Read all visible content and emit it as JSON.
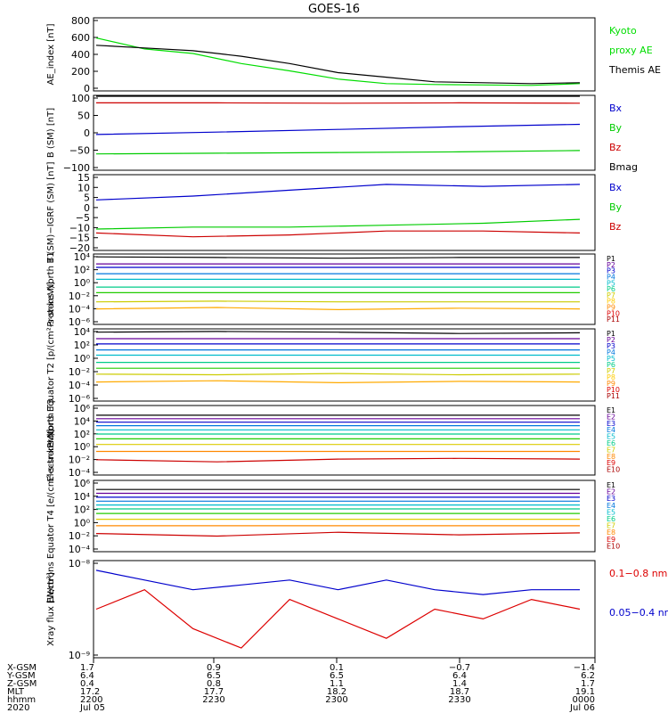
{
  "title": "GOES-16",
  "chart_data": [
    {
      "type": "line",
      "ylabel": "AE_index [nT]",
      "ylim": [
        0,
        800
      ],
      "y_ticks": [
        "800",
        "600",
        "400",
        "200",
        "0"
      ],
      "x": [
        0,
        0.1,
        0.2,
        0.3,
        0.4,
        0.5,
        0.6,
        0.7,
        0.8,
        0.9,
        1.0
      ],
      "series": [
        {
          "name": "Kyoto proxy AE",
          "color": "#00dd00",
          "values": [
            580,
            460,
            410,
            300,
            220,
            130,
            80,
            70,
            65,
            60,
            80
          ]
        },
        {
          "name": "Themis AE",
          "color": "#000000",
          "values": [
            500,
            470,
            440,
            380,
            300,
            200,
            150,
            100,
            90,
            80,
            90
          ]
        }
      ],
      "legend": [
        {
          "text": "Kyoto",
          "color": "#00dd00"
        },
        {
          "text": "proxy AE",
          "color": "#00dd00"
        },
        {
          "text": "Themis AE",
          "color": "#000000"
        }
      ]
    },
    {
      "type": "line",
      "ylabel": "B (SM) [nT]",
      "ylim": [
        -110,
        110
      ],
      "y_ticks": [
        "100",
        "50",
        "0",
        "−50",
        "−100"
      ],
      "x": [
        0,
        0.25,
        0.5,
        0.75,
        1.0
      ],
      "series": [
        {
          "name": "Bx",
          "color": "#0000cc",
          "values": [
            -5,
            2,
            10,
            18,
            25
          ]
        },
        {
          "name": "By",
          "color": "#00cc00",
          "values": [
            -62,
            -60,
            -58,
            -56,
            -52
          ]
        },
        {
          "name": "Bz",
          "color": "#cc0000",
          "values": [
            88,
            88,
            87,
            88,
            87
          ]
        },
        {
          "name": "Bmag",
          "color": "#000000",
          "values": [
            108,
            108,
            108,
            108,
            108
          ]
        }
      ],
      "legend": [
        {
          "text": "Bx",
          "color": "#0000cc"
        },
        {
          "text": "By",
          "color": "#00cc00"
        },
        {
          "text": "Bz",
          "color": "#cc0000"
        },
        {
          "text": "Bmag",
          "color": "#000000"
        }
      ]
    },
    {
      "type": "line",
      "ylabel": "B (SM)−IGRF (SM) [nT]",
      "ylim": [
        -22,
        17
      ],
      "y_ticks": [
        "15",
        "10",
        "5",
        "0",
        "−5",
        "−10",
        "−15",
        "−20"
      ],
      "x": [
        0,
        0.2,
        0.4,
        0.6,
        0.8,
        1.0
      ],
      "series": [
        {
          "name": "Bx",
          "color": "#0000cc",
          "values": [
            4,
            6,
            9,
            12,
            11,
            12
          ]
        },
        {
          "name": "By",
          "color": "#00cc00",
          "values": [
            -11,
            -10,
            -10,
            -9,
            -8,
            -6
          ]
        },
        {
          "name": "Bz",
          "color": "#cc0000",
          "values": [
            -13,
            -15,
            -14,
            -12,
            -12,
            -13
          ]
        }
      ],
      "legend": [
        {
          "text": "Bx",
          "color": "#0000cc"
        },
        {
          "text": "By",
          "color": "#00cc00"
        },
        {
          "text": "Bz",
          "color": "#cc0000"
        }
      ]
    },
    {
      "type": "line",
      "scale": "log",
      "ylabel": "Protons North T1",
      "ylim": [
        -6,
        4
      ],
      "y_ticks": [
        "10⁴",
        "10²",
        "10⁰",
        "10⁻²",
        "10⁻⁴",
        "10⁻⁶"
      ],
      "series": [
        {
          "name": "P1",
          "color": "#000000",
          "log_values": [
            3.6,
            3.5,
            3.4,
            3.5,
            3.5
          ]
        },
        {
          "name": "P2",
          "color": "#660099",
          "log_values": [
            2.6,
            2.6,
            2.6,
            2.6,
            2.6
          ]
        },
        {
          "name": "P3",
          "color": "#0000cc",
          "log_values": [
            2.1,
            2.1,
            2.1,
            2.1,
            2.1
          ]
        },
        {
          "name": "P4",
          "color": "#0077dd",
          "log_values": [
            1.2,
            1.2,
            1.2,
            1.2,
            1.2
          ]
        },
        {
          "name": "P5",
          "color": "#00bbcc",
          "log_values": [
            0.4,
            0.4,
            0.4,
            0.4,
            0.4
          ]
        },
        {
          "name": "P6",
          "color": "#00cc88",
          "log_values": [
            -0.7,
            -0.7,
            -0.7,
            -0.7,
            -0.7
          ]
        },
        {
          "name": "P7",
          "color": "#22cc00",
          "log_values": [
            -1.5,
            -1.5,
            -1.5,
            -1.5,
            -1.5
          ]
        },
        {
          "name": "P8",
          "color": "#cccc00",
          "log_values": [
            -2.8,
            -2.7,
            -2.8,
            -2.8,
            -2.8
          ]
        },
        {
          "name": "P9",
          "color": "#ffaa00",
          "log_values": [
            -3.8,
            -3.6,
            -3.9,
            -3.7,
            -3.8
          ]
        }
      ],
      "legend": [
        {
          "text": "P1",
          "color": "#000000"
        },
        {
          "text": "P2",
          "color": "#660099"
        },
        {
          "text": "P3",
          "color": "#0000cc"
        },
        {
          "text": "P4",
          "color": "#0077dd"
        },
        {
          "text": "P5",
          "color": "#00bbcc"
        },
        {
          "text": "P6",
          "color": "#00cc88"
        },
        {
          "text": "P7",
          "color": "#cccc00"
        },
        {
          "text": "P8",
          "color": "#ffcc00"
        },
        {
          "text": "P9",
          "color": "#ff8800"
        },
        {
          "text": "P10",
          "color": "#dd0000"
        },
        {
          "text": "P11",
          "color": "#aa0000"
        }
      ]
    },
    {
      "type": "line",
      "scale": "log",
      "ylabel": "Protons Equator T2 [p/(cm²-s-sr-keV)]",
      "ylim": [
        -7,
        4
      ],
      "y_ticks": [
        "10⁴",
        "10²",
        "10⁰",
        "10⁻²",
        "10⁻⁴",
        "10⁻⁶"
      ],
      "series": [
        {
          "name": "P1",
          "color": "#000000",
          "log_values": [
            3.5,
            3.6,
            3.5,
            3.3,
            3.4
          ]
        },
        {
          "name": "P2",
          "color": "#660099",
          "log_values": [
            2.5,
            2.5,
            2.5,
            2.5,
            2.5
          ]
        },
        {
          "name": "P3",
          "color": "#0000cc",
          "log_values": [
            1.7,
            1.7,
            1.7,
            1.7,
            1.7
          ]
        },
        {
          "name": "P4",
          "color": "#0077dd",
          "log_values": [
            0.8,
            0.8,
            0.8,
            0.8,
            0.8
          ]
        },
        {
          "name": "P5",
          "color": "#00bbcc",
          "log_values": [
            0.0,
            0.0,
            0.0,
            0.0,
            0.0
          ]
        },
        {
          "name": "P6",
          "color": "#00cc88",
          "log_values": [
            -1.1,
            -1.1,
            -1.1,
            -1.1,
            -1.1
          ]
        },
        {
          "name": "P7",
          "color": "#22cc00",
          "log_values": [
            -2.0,
            -2.0,
            -2.0,
            -2.0,
            -2.0
          ]
        },
        {
          "name": "P8",
          "color": "#cccc00",
          "log_values": [
            -2.9,
            -3.0,
            -2.8,
            -3.0,
            -2.9
          ]
        },
        {
          "name": "P9",
          "color": "#ffaa00",
          "log_values": [
            -4.1,
            -3.9,
            -4.2,
            -4.0,
            -4.1
          ]
        }
      ],
      "legend": [
        {
          "text": "P1",
          "color": "#000000"
        },
        {
          "text": "P2",
          "color": "#660099"
        },
        {
          "text": "P3",
          "color": "#0000cc"
        },
        {
          "text": "P4",
          "color": "#0077dd"
        },
        {
          "text": "P5",
          "color": "#00bbcc"
        },
        {
          "text": "P6",
          "color": "#00cc88"
        },
        {
          "text": "P7",
          "color": "#cccc00"
        },
        {
          "text": "P8",
          "color": "#ffcc00"
        },
        {
          "text": "P9",
          "color": "#ff8800"
        },
        {
          "text": "P10",
          "color": "#dd0000"
        },
        {
          "text": "P11",
          "color": "#aa0000"
        }
      ]
    },
    {
      "type": "line",
      "scale": "log",
      "ylabel": "Electrons North T3",
      "ylim": [
        -4,
        6
      ],
      "y_ticks": [
        "10⁶",
        "10⁴",
        "10²",
        "10⁰",
        "10⁻²",
        "10⁻⁴"
      ],
      "series": [
        {
          "name": "E1",
          "color": "#000000",
          "log_values": [
            4.6,
            4.6,
            4.6,
            4.6,
            4.6
          ]
        },
        {
          "name": "E2",
          "color": "#660099",
          "log_values": [
            4.1,
            4.1,
            4.1,
            4.1,
            4.1
          ]
        },
        {
          "name": "E3",
          "color": "#0000cc",
          "log_values": [
            3.6,
            3.6,
            3.6,
            3.6,
            3.6
          ]
        },
        {
          "name": "E4",
          "color": "#0077dd",
          "log_values": [
            3.1,
            3.1,
            3.1,
            3.1,
            3.1
          ]
        },
        {
          "name": "E5",
          "color": "#00bbcc",
          "log_values": [
            2.5,
            2.5,
            2.5,
            2.5,
            2.5
          ]
        },
        {
          "name": "E6",
          "color": "#00cc88",
          "log_values": [
            1.9,
            1.9,
            1.9,
            1.9,
            1.9
          ]
        },
        {
          "name": "E7",
          "color": "#22cc00",
          "log_values": [
            1.2,
            1.2,
            1.2,
            1.2,
            1.2
          ]
        },
        {
          "name": "E8",
          "color": "#ddcc00",
          "log_values": [
            0.4,
            0.4,
            0.4,
            0.4,
            0.4
          ]
        },
        {
          "name": "E9",
          "color": "#ff8800",
          "log_values": [
            -0.6,
            -0.6,
            -0.6,
            -0.6,
            -0.6
          ]
        },
        {
          "name": "E10",
          "color": "#cc0000",
          "log_values": [
            -1.8,
            -2.1,
            -1.7,
            -1.6,
            -1.7
          ]
        }
      ],
      "legend": [
        {
          "text": "E1",
          "color": "#000000"
        },
        {
          "text": "E2",
          "color": "#660099"
        },
        {
          "text": "E3",
          "color": "#0000cc"
        },
        {
          "text": "E4",
          "color": "#0077dd"
        },
        {
          "text": "E5",
          "color": "#00bbcc"
        },
        {
          "text": "E6",
          "color": "#00cc88"
        },
        {
          "text": "E7",
          "color": "#cccc00"
        },
        {
          "text": "E8",
          "color": "#ff8800"
        },
        {
          "text": "E9",
          "color": "#dd0000"
        },
        {
          "text": "E10",
          "color": "#aa0000"
        }
      ]
    },
    {
      "type": "line",
      "scale": "log",
      "ylabel": "Electrons Equator T4 [e/(cm²-s-sr-keV)]",
      "ylim": [
        -5,
        6
      ],
      "y_ticks": [
        "10⁶",
        "10⁴",
        "10²",
        "10⁰",
        "10⁻²",
        "10⁻⁴"
      ],
      "series": [
        {
          "name": "E1",
          "color": "#000000",
          "log_values": [
            4.6,
            4.6,
            4.6,
            4.6,
            4.6
          ]
        },
        {
          "name": "E2",
          "color": "#660099",
          "log_values": [
            4.0,
            4.0,
            4.0,
            4.0,
            4.0
          ]
        },
        {
          "name": "E3",
          "color": "#0000cc",
          "log_values": [
            3.4,
            3.4,
            3.4,
            3.4,
            3.4
          ]
        },
        {
          "name": "E4",
          "color": "#0077dd",
          "log_values": [
            2.8,
            2.8,
            2.8,
            2.8,
            2.8
          ]
        },
        {
          "name": "E5",
          "color": "#00bbcc",
          "log_values": [
            2.2,
            2.2,
            2.2,
            2.2,
            2.2
          ]
        },
        {
          "name": "E6",
          "color": "#00cc88",
          "log_values": [
            1.6,
            1.6,
            1.6,
            1.6,
            1.6
          ]
        },
        {
          "name": "E7",
          "color": "#22cc00",
          "log_values": [
            0.9,
            0.9,
            0.9,
            0.9,
            0.9
          ]
        },
        {
          "name": "E8",
          "color": "#ddcc00",
          "log_values": [
            0.0,
            0.0,
            0.0,
            0.0,
            0.0
          ]
        },
        {
          "name": "E9",
          "color": "#ff8800",
          "log_values": [
            -1.0,
            -1.0,
            -1.0,
            -1.0,
            -1.0
          ]
        },
        {
          "name": "E10",
          "color": "#cc0000",
          "log_values": [
            -2.2,
            -2.6,
            -2.0,
            -2.4,
            -2.1
          ]
        }
      ],
      "legend": [
        {
          "text": "E1",
          "color": "#000000"
        },
        {
          "text": "E2",
          "color": "#660099"
        },
        {
          "text": "E3",
          "color": "#0000cc"
        },
        {
          "text": "E4",
          "color": "#0077dd"
        },
        {
          "text": "E5",
          "color": "#00bbcc"
        },
        {
          "text": "E6",
          "color": "#00cc88"
        },
        {
          "text": "E7",
          "color": "#cccc00"
        },
        {
          "text": "E8",
          "color": "#ff8800"
        },
        {
          "text": "E9",
          "color": "#dd0000"
        },
        {
          "text": "E10",
          "color": "#aa0000"
        }
      ]
    },
    {
      "type": "line",
      "scale": "log",
      "ylabel": "Xray flux [W/m²]",
      "ylim": [
        -9,
        -8
      ],
      "y_ticks": [
        "10⁻⁸",
        "10⁻⁹"
      ],
      "series": [
        {
          "name": "0.1–0.8 nm",
          "color": "#dd0000",
          "log_values": [
            -8.5,
            -8.3,
            -8.7,
            -8.9,
            -8.4,
            -8.6,
            -8.8,
            -8.5,
            -8.6,
            -8.4,
            -8.5
          ]
        },
        {
          "name": "0.05–0.4 nm",
          "color": "#0000cc",
          "log_values": [
            -8.1,
            -8.2,
            -8.3,
            -8.25,
            -8.2,
            -8.3,
            -8.2,
            -8.3,
            -8.35,
            -8.3,
            -8.3
          ]
        }
      ],
      "legend": [
        {
          "text": "0.1−0.8 nm",
          "color": "#dd0000"
        },
        {
          "text": "0.05−0.4 nm",
          "color": "#0000cc"
        }
      ]
    }
  ],
  "x_axis": {
    "row_labels": [
      "X-GSM",
      "Y-GSM",
      "Z-GSM",
      "MLT",
      "hhmm",
      "2020"
    ],
    "columns": [
      [
        "1.7",
        "6.4",
        "0.4",
        "17.2",
        "2200",
        "Jul 05"
      ],
      [
        "0.9",
        "6.5",
        "0.8",
        "17.7",
        "2230",
        ""
      ],
      [
        "0.1",
        "6.5",
        "1.1",
        "18.2",
        "2300",
        ""
      ],
      [
        "−0.7",
        "6.4",
        "1.4",
        "18.7",
        "2330",
        ""
      ],
      [
        "−1.4",
        "6.2",
        "1.7",
        "19.1",
        "0000",
        "Jul 06"
      ]
    ]
  }
}
